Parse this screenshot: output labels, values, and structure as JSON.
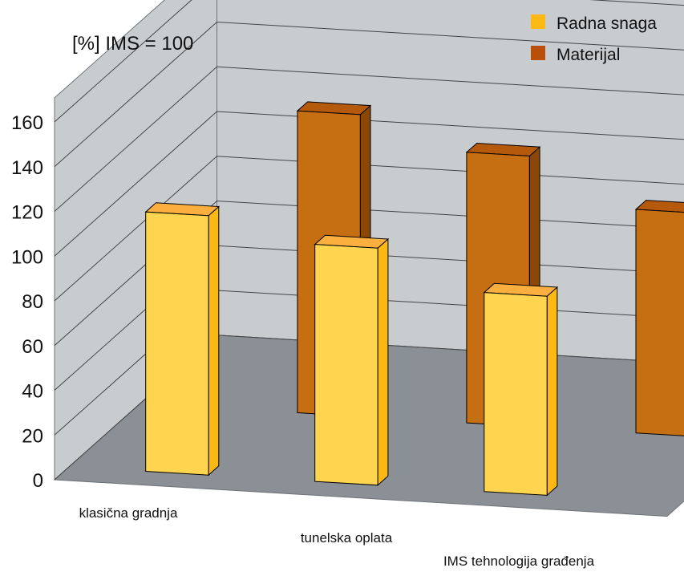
{
  "chart_data": {
    "type": "bar",
    "style": "3d-clustered-column",
    "title": "",
    "ylabel": "[%] IMS = 100",
    "xlabel": "",
    "categories": [
      "klasična gradnja",
      "tunelska oplata",
      "IMS tehnologija građenja"
    ],
    "series": [
      {
        "name": "Radna snaga",
        "values": [
          116,
          106,
          89
        ],
        "color": "#FFD54F",
        "side_color": "#FDB913",
        "top_color": "#FBAF3F"
      },
      {
        "name": "Materijal",
        "values": [
          135,
          121,
          100
        ],
        "color": "#C56E12",
        "side_color": "#8B4706",
        "top_color": "#B55A0C"
      }
    ],
    "ylim": [
      0,
      160
    ],
    "yticks": [
      "0",
      "20",
      "40",
      "60",
      "80",
      "100",
      "120",
      "140",
      "160"
    ],
    "grid": true,
    "legend_position": "top-right",
    "wall_color": "#C9CCCF",
    "floor_color": "#8A9096"
  }
}
